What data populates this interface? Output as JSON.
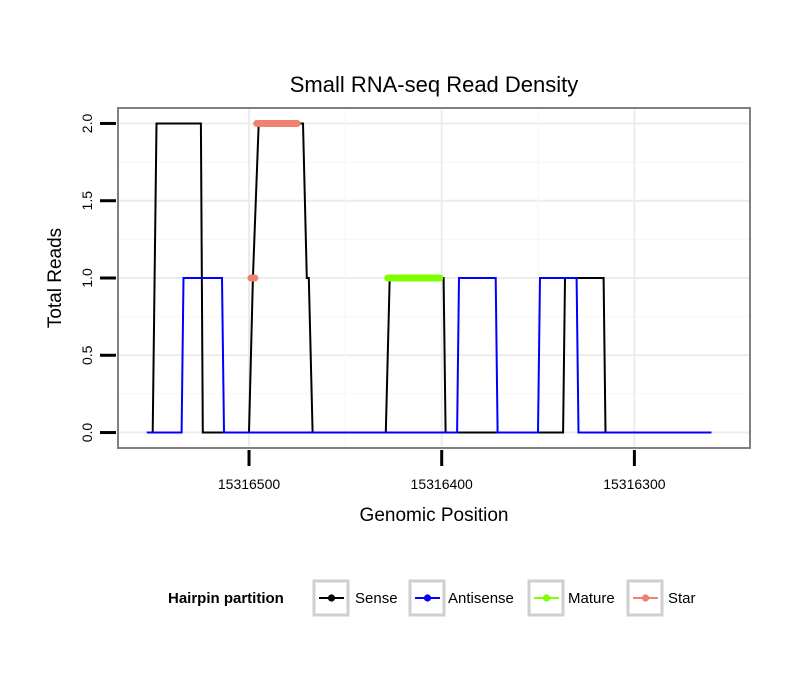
{
  "chart_data": {
    "type": "line",
    "title": "Small RNA-seq Read Density",
    "xlabel": "Genomic Position",
    "ylabel": "Total Reads",
    "x_reversed": true,
    "xlim": [
      15316240,
      15316568
    ],
    "ylim": [
      -0.1,
      2.1
    ],
    "xticks": [
      15316500,
      15316400,
      15316300
    ],
    "xtick_labels": [
      "15316500",
      "15316400",
      "15316300"
    ],
    "yticks": [
      0.0,
      0.5,
      1.0,
      1.5,
      2.0
    ],
    "ytick_labels": [
      "0.0",
      "0.5",
      "1.0",
      "1.5",
      "2.0"
    ],
    "grid": true,
    "legend": {
      "title": "Hairpin partition",
      "position": "bottom",
      "entries": [
        {
          "label": "Sense",
          "color": "#000000"
        },
        {
          "label": "Antisense",
          "color": "#0000ff"
        },
        {
          "label": "Mature",
          "color": "#7fff00"
        },
        {
          "label": "Star",
          "color": "#f08070"
        }
      ]
    },
    "series": [
      {
        "name": "Sense",
        "color": "#000000",
        "x": [
          15316553,
          15316550,
          15316548,
          15316525,
          15316524,
          15316502,
          15316500,
          15316498,
          15316495,
          15316492,
          15316472,
          15316470,
          15316469,
          15316467,
          15316429,
          15316427,
          15316400,
          15316399,
          15316398,
          15316337,
          15316336,
          15316316,
          15316315,
          15316260
        ],
        "y": [
          0,
          0,
          2,
          2,
          0,
          0,
          0,
          1,
          2,
          2,
          2,
          1,
          1,
          0,
          0,
          1,
          1,
          1,
          0,
          0,
          1,
          1,
          0,
          0
        ]
      },
      {
        "name": "Antisense",
        "color": "#0000ff",
        "x": [
          15316553,
          15316535,
          15316534,
          15316514,
          15316513,
          15316429,
          15316392,
          15316391,
          15316372,
          15316371,
          15316350,
          15316349,
          15316330,
          15316329,
          15316260
        ],
        "y": [
          0,
          0,
          1,
          1,
          0,
          0,
          0,
          1,
          1,
          0,
          0,
          1,
          1,
          0,
          0
        ]
      },
      {
        "name": "Mature",
        "color": "#7fff00",
        "x": [
          15316428,
          15316401
        ],
        "y": [
          1,
          1
        ]
      },
      {
        "name": "Star",
        "color": "#f08070",
        "x": [
          15316496,
          15316475,
          15316499,
          15316497
        ],
        "y": [
          2,
          2,
          1,
          1
        ],
        "segments": [
          [
            0,
            1
          ],
          [
            2,
            3
          ]
        ]
      }
    ]
  }
}
